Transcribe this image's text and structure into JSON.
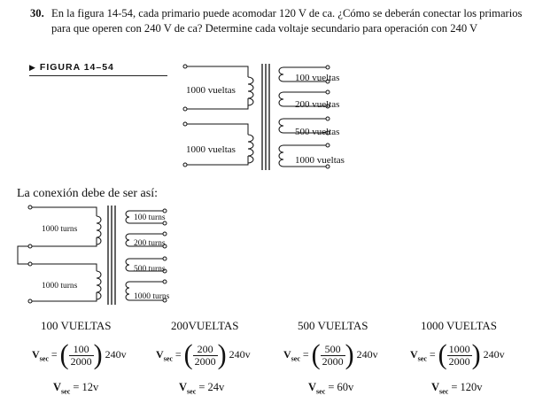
{
  "problem": {
    "number": "30.",
    "text": "En la figura 14-54, cada primario puede acomodar 120 V de ca. ¿Cómo se deberán conectar los primarios para que operen con 240 V de ca? Determine cada voltaje secundario para operación con 240 V"
  },
  "figure": {
    "label": "FIGURA 14–54",
    "primary_labels": [
      "1000 vueltas",
      "1000 vueltas"
    ],
    "secondary_labels": [
      "100 vueltas",
      "200 vueltas",
      "500 vueltas",
      "1000 vueltas"
    ]
  },
  "connection": {
    "caption": "La conexión debe de ser así:",
    "primary_labels": [
      "1000 turns",
      "1000 turns"
    ],
    "secondary_labels": [
      "100 turns",
      "200 turns",
      "500 turns",
      "1000 turns"
    ]
  },
  "calculations": [
    {
      "heading": "100 VUELTAS",
      "numerator": "100",
      "denominator": "2000",
      "input": "240v",
      "result": "= 12v"
    },
    {
      "heading": "200VUELTAS",
      "numerator": "200",
      "denominator": "2000",
      "input": "240v",
      "result": "= 24v"
    },
    {
      "heading": "500 VUELTAS",
      "numerator": "500",
      "denominator": "2000",
      "input": "240v",
      "result": "= 60v"
    },
    {
      "heading": "1000 VUELTAS",
      "numerator": "1000",
      "denominator": "2000",
      "input": "240v",
      "result": "= 120v"
    }
  ],
  "symbols": {
    "v": "V",
    "sub": "sec",
    "eq": "="
  }
}
